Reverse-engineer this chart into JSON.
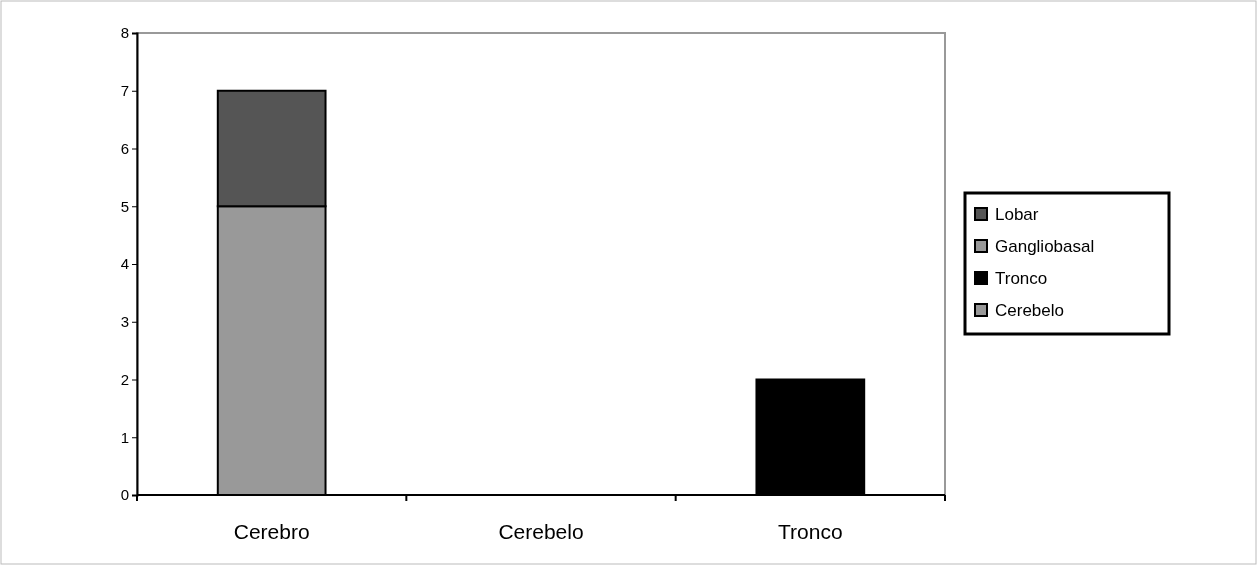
{
  "chart_data": {
    "type": "bar",
    "stacked": true,
    "categories": [
      "Cerebro",
      "Cerebelo",
      "Tronco"
    ],
    "series": [
      {
        "name": "Cerebelo",
        "color": "#999999",
        "values": [
          0,
          0,
          0
        ]
      },
      {
        "name": "Tronco",
        "color": "#000000",
        "values": [
          0,
          0,
          2
        ]
      },
      {
        "name": "Gangliobasal",
        "color": "#999999",
        "values": [
          5,
          0,
          0
        ]
      },
      {
        "name": "Lobar",
        "color": "#555555",
        "values": [
          2,
          0,
          0
        ]
      }
    ],
    "ylim": [
      0,
      8
    ],
    "yticks": [
      0,
      1,
      2,
      3,
      4,
      5,
      6,
      7,
      8
    ],
    "grid": false,
    "legend": "right"
  }
}
